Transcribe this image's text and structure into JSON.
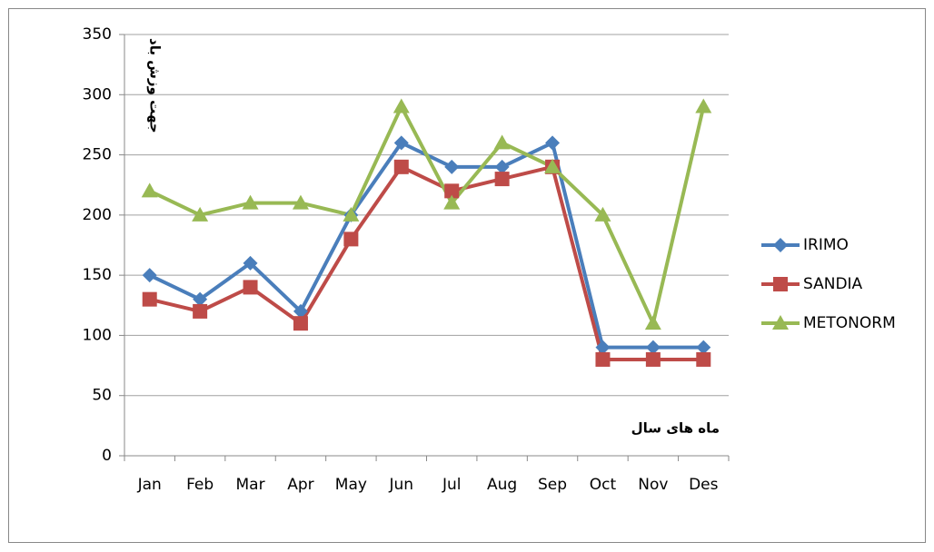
{
  "chart_data": {
    "type": "line",
    "y_label": "جهت وزش باد",
    "x_label": "ماه های سال",
    "categories": [
      "Jan",
      "Feb",
      "Mar",
      "Apr",
      "May",
      "Jun",
      "Jul",
      "Aug",
      "Sep",
      "Oct",
      "Nov",
      "Des"
    ],
    "series": [
      {
        "name": "IRIMO",
        "color": "#4a7ebb",
        "marker": "diamond",
        "values": [
          150,
          130,
          160,
          120,
          200,
          260,
          240,
          240,
          260,
          90,
          90,
          90
        ]
      },
      {
        "name": "SANDIA",
        "color": "#be4b48",
        "marker": "square",
        "values": [
          130,
          120,
          140,
          110,
          180,
          240,
          220,
          230,
          240,
          80,
          80,
          80
        ]
      },
      {
        "name": "METONORM",
        "color": "#98b954",
        "marker": "triangle",
        "values": [
          220,
          200,
          210,
          210,
          200,
          290,
          210,
          260,
          240,
          200,
          110,
          290
        ]
      }
    ],
    "ylim": [
      0,
      350
    ],
    "yticks": [
      0,
      50,
      100,
      150,
      200,
      250,
      300,
      350
    ],
    "grid": true,
    "legend": "right"
  }
}
